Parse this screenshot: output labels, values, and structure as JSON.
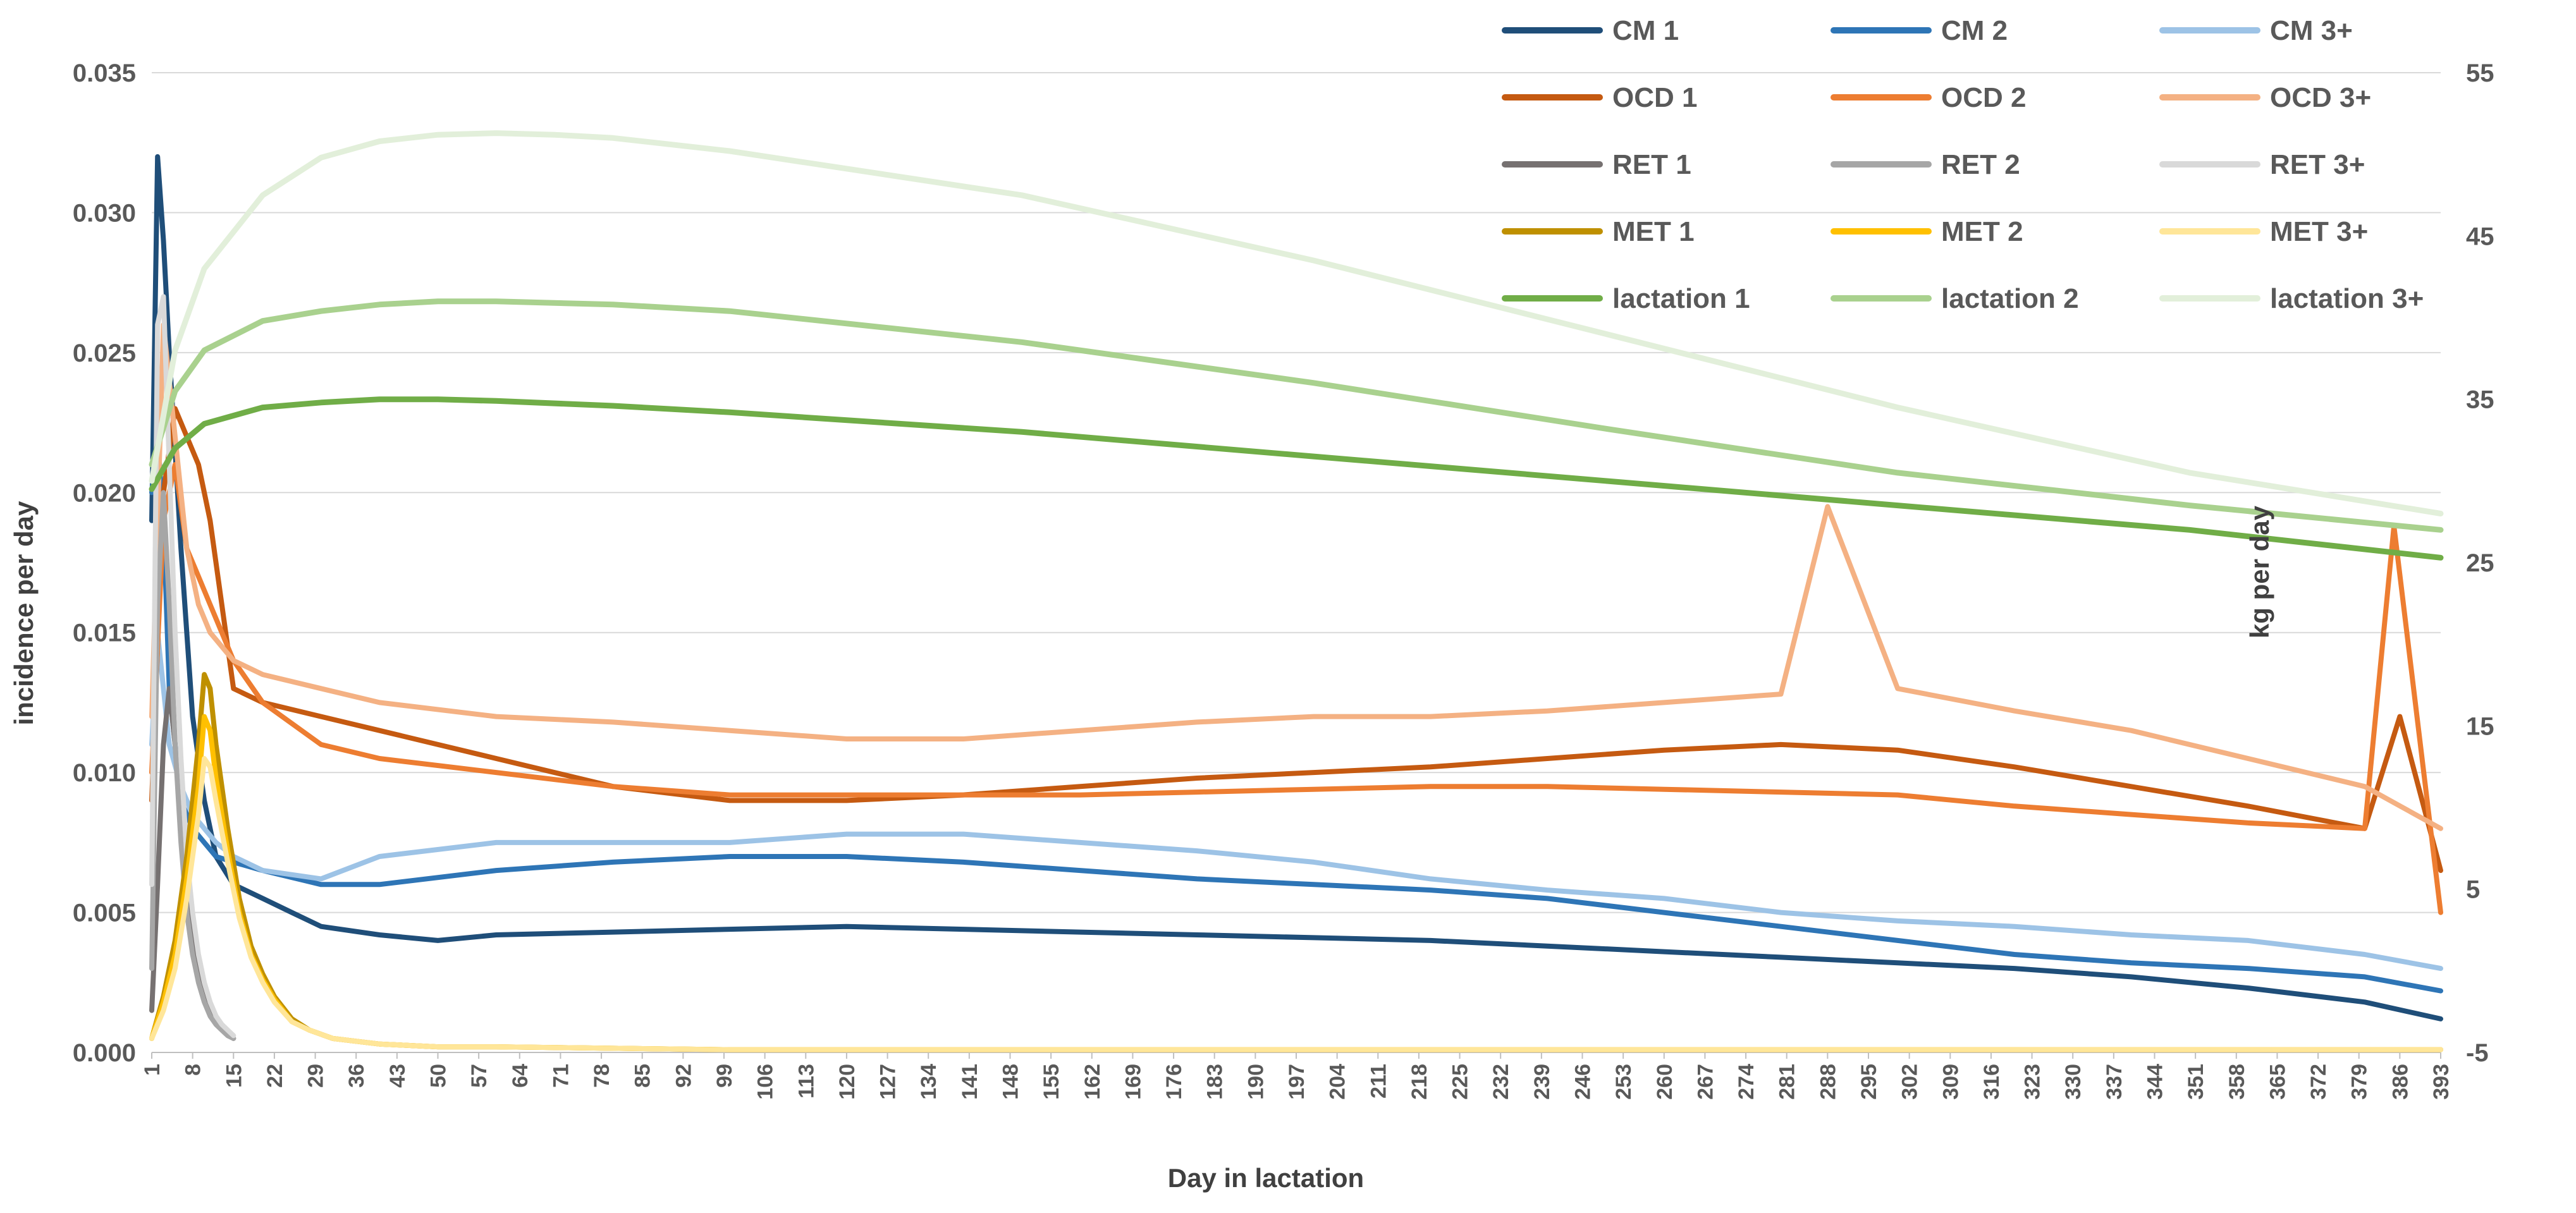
{
  "chart_data": {
    "type": "line",
    "xlabel": "Day in lactation",
    "ylabel": "incidence per day",
    "y2label": "kg per day",
    "x_range": [
      1,
      393
    ],
    "x_ticks": [
      1,
      8,
      15,
      22,
      29,
      36,
      43,
      50,
      57,
      64,
      71,
      78,
      85,
      92,
      99,
      106,
      113,
      120,
      127,
      134,
      141,
      148,
      155,
      162,
      169,
      176,
      183,
      190,
      197,
      204,
      211,
      218,
      225,
      232,
      239,
      246,
      253,
      260,
      267,
      274,
      281,
      288,
      295,
      302,
      309,
      316,
      323,
      330,
      337,
      344,
      351,
      358,
      365,
      372,
      379,
      386,
      393
    ],
    "ylim": [
      0,
      0.035
    ],
    "y_ticks": [
      "0.000",
      "0.005",
      "0.010",
      "0.015",
      "0.020",
      "0.025",
      "0.030",
      "0.035"
    ],
    "y2lim": [
      -5,
      55
    ],
    "y2_ticks": [
      "-5",
      "5",
      "15",
      "25",
      "35",
      "45",
      "55"
    ],
    "grid": "horizontal",
    "legend": "top-right",
    "series": [
      {
        "name": "CM 1",
        "axis": "left",
        "color": "#1f4e79",
        "x": [
          1,
          2,
          3,
          4,
          6,
          8,
          10,
          12,
          15,
          20,
          25,
          30,
          40,
          50,
          60,
          80,
          100,
          120,
          140,
          160,
          180,
          200,
          220,
          240,
          260,
          280,
          300,
          320,
          340,
          360,
          380,
          393
        ],
        "values": [
          0.019,
          0.032,
          0.029,
          0.025,
          0.018,
          0.012,
          0.009,
          0.007,
          0.006,
          0.0055,
          0.005,
          0.0045,
          0.0042,
          0.004,
          0.0042,
          0.0043,
          0.0044,
          0.0045,
          0.0044,
          0.0043,
          0.0042,
          0.0041,
          0.004,
          0.0038,
          0.0036,
          0.0034,
          0.0032,
          0.003,
          0.0027,
          0.0023,
          0.0018,
          0.0012
        ]
      },
      {
        "name": "CM 2",
        "axis": "left",
        "color": "#2e75b6",
        "x": [
          1,
          2,
          3,
          4,
          6,
          8,
          10,
          12,
          15,
          20,
          30,
          40,
          60,
          80,
          100,
          120,
          140,
          160,
          180,
          200,
          220,
          240,
          260,
          280,
          300,
          320,
          340,
          360,
          380,
          393
        ],
        "values": [
          0.02,
          0.022,
          0.019,
          0.013,
          0.009,
          0.008,
          0.0075,
          0.007,
          0.0068,
          0.0065,
          0.006,
          0.006,
          0.0065,
          0.0068,
          0.007,
          0.007,
          0.0068,
          0.0065,
          0.0062,
          0.006,
          0.0058,
          0.0055,
          0.005,
          0.0045,
          0.004,
          0.0035,
          0.0032,
          0.003,
          0.0027,
          0.0022
        ]
      },
      {
        "name": "CM 3+",
        "axis": "left",
        "color": "#9dc3e6",
        "x": [
          1,
          2,
          3,
          4,
          6,
          8,
          10,
          12,
          15,
          20,
          30,
          40,
          60,
          80,
          100,
          120,
          140,
          160,
          180,
          200,
          220,
          240,
          260,
          280,
          300,
          320,
          340,
          360,
          380,
          393
        ],
        "values": [
          0.011,
          0.015,
          0.013,
          0.011,
          0.0095,
          0.0085,
          0.008,
          0.0075,
          0.007,
          0.0065,
          0.0062,
          0.007,
          0.0075,
          0.0075,
          0.0075,
          0.0078,
          0.0078,
          0.0075,
          0.0072,
          0.0068,
          0.0062,
          0.0058,
          0.0055,
          0.005,
          0.0047,
          0.0045,
          0.0042,
          0.004,
          0.0035,
          0.003
        ]
      },
      {
        "name": "OCD 1",
        "axis": "left",
        "color": "#c55a11",
        "x": [
          1,
          3,
          5,
          7,
          9,
          11,
          13,
          15,
          20,
          30,
          40,
          60,
          80,
          100,
          120,
          140,
          160,
          180,
          200,
          220,
          240,
          260,
          280,
          300,
          320,
          340,
          360,
          380,
          386,
          393
        ],
        "values": [
          0.009,
          0.02,
          0.023,
          0.022,
          0.021,
          0.019,
          0.016,
          0.013,
          0.0125,
          0.012,
          0.0115,
          0.0105,
          0.0095,
          0.009,
          0.009,
          0.0092,
          0.0095,
          0.0098,
          0.01,
          0.0102,
          0.0105,
          0.0108,
          0.011,
          0.0108,
          0.0102,
          0.0095,
          0.0088,
          0.008,
          0.012,
          0.0065
        ]
      },
      {
        "name": "OCD 2",
        "axis": "left",
        "color": "#ed7d31",
        "x": [
          1,
          3,
          5,
          7,
          9,
          11,
          13,
          15,
          20,
          30,
          40,
          60,
          80,
          100,
          120,
          140,
          160,
          180,
          200,
          220,
          240,
          260,
          280,
          300,
          320,
          340,
          360,
          380,
          385,
          393
        ],
        "values": [
          0.01,
          0.019,
          0.021,
          0.018,
          0.017,
          0.016,
          0.015,
          0.014,
          0.0125,
          0.011,
          0.0105,
          0.01,
          0.0095,
          0.0092,
          0.0092,
          0.0092,
          0.0092,
          0.0093,
          0.0094,
          0.0095,
          0.0095,
          0.0094,
          0.0093,
          0.0092,
          0.0088,
          0.0085,
          0.0082,
          0.008,
          0.0188,
          0.005
        ]
      },
      {
        "name": "OCD 3+",
        "axis": "left",
        "color": "#f4b183",
        "x": [
          1,
          3,
          5,
          7,
          9,
          11,
          13,
          15,
          20,
          30,
          40,
          60,
          80,
          100,
          120,
          140,
          160,
          180,
          200,
          220,
          240,
          260,
          280,
          288,
          300,
          320,
          340,
          360,
          380,
          393
        ],
        "values": [
          0.012,
          0.026,
          0.022,
          0.018,
          0.016,
          0.015,
          0.0145,
          0.014,
          0.0135,
          0.013,
          0.0125,
          0.012,
          0.0118,
          0.0115,
          0.0112,
          0.0112,
          0.0115,
          0.0118,
          0.012,
          0.012,
          0.0122,
          0.0125,
          0.0128,
          0.0195,
          0.013,
          0.0122,
          0.0115,
          0.0105,
          0.0095,
          0.008
        ]
      },
      {
        "name": "RET 1",
        "axis": "left",
        "color": "#767171",
        "x": [
          1,
          2,
          3,
          4,
          5,
          6,
          7,
          8,
          9,
          10,
          11,
          12,
          13,
          14,
          15
        ],
        "values": [
          0.0015,
          0.006,
          0.011,
          0.013,
          0.011,
          0.008,
          0.0055,
          0.004,
          0.003,
          0.0022,
          0.0016,
          0.0012,
          0.0009,
          0.0007,
          0.0005
        ]
      },
      {
        "name": "RET 2",
        "axis": "left",
        "color": "#a6a6a6",
        "x": [
          1,
          2,
          3,
          4,
          5,
          6,
          7,
          8,
          9,
          10,
          11,
          12,
          13,
          14,
          15
        ],
        "values": [
          0.003,
          0.016,
          0.02,
          0.016,
          0.011,
          0.0075,
          0.005,
          0.0035,
          0.0025,
          0.0018,
          0.0013,
          0.001,
          0.0008,
          0.0006,
          0.0005
        ]
      },
      {
        "name": "RET 3+",
        "axis": "left",
        "color": "#d9d9d9",
        "x": [
          1,
          2,
          3,
          4,
          5,
          6,
          7,
          8,
          9,
          10,
          11,
          12,
          13,
          14,
          15
        ],
        "values": [
          0.006,
          0.026,
          0.027,
          0.021,
          0.015,
          0.0105,
          0.007,
          0.005,
          0.0035,
          0.0025,
          0.0018,
          0.0013,
          0.001,
          0.0008,
          0.0006
        ]
      },
      {
        "name": "MET 1",
        "axis": "left",
        "color": "#bf9000",
        "x": [
          1,
          3,
          5,
          7,
          9,
          10,
          11,
          12,
          14,
          16,
          18,
          20,
          22,
          25,
          28,
          32,
          36,
          40,
          50,
          60,
          80,
          100,
          150,
          200,
          250,
          300,
          350,
          393
        ],
        "values": [
          0.0005,
          0.002,
          0.004,
          0.007,
          0.011,
          0.0135,
          0.013,
          0.011,
          0.008,
          0.0055,
          0.0038,
          0.0028,
          0.002,
          0.0012,
          0.0008,
          0.0005,
          0.0004,
          0.0003,
          0.0002,
          0.0002,
          0.00015,
          0.0001,
          0.0001,
          0.0001,
          0.0001,
          0.0001,
          0.0001,
          0.0001
        ]
      },
      {
        "name": "MET 2",
        "axis": "left",
        "color": "#ffc000",
        "x": [
          1,
          3,
          5,
          7,
          9,
          10,
          11,
          12,
          14,
          16,
          18,
          20,
          22,
          25,
          28,
          32,
          36,
          40,
          50,
          60,
          80,
          100,
          150,
          200,
          250,
          300,
          350,
          393
        ],
        "values": [
          0.0005,
          0.0018,
          0.0035,
          0.0062,
          0.0095,
          0.012,
          0.0115,
          0.0098,
          0.0072,
          0.005,
          0.0035,
          0.0026,
          0.0019,
          0.0011,
          0.0008,
          0.0005,
          0.0004,
          0.0003,
          0.0002,
          0.0002,
          0.00015,
          0.0001,
          0.0001,
          0.0001,
          0.0001,
          0.0001,
          0.0001,
          0.0001
        ]
      },
      {
        "name": "MET 3+",
        "axis": "left",
        "color": "#ffe699",
        "x": [
          1,
          3,
          5,
          7,
          9,
          10,
          11,
          12,
          14,
          16,
          18,
          20,
          22,
          25,
          28,
          32,
          36,
          40,
          50,
          60,
          80,
          100,
          150,
          200,
          250,
          300,
          350,
          393
        ],
        "values": [
          0.0005,
          0.0015,
          0.003,
          0.0055,
          0.0085,
          0.0105,
          0.0102,
          0.009,
          0.0068,
          0.0048,
          0.0034,
          0.0025,
          0.0018,
          0.0011,
          0.0008,
          0.0005,
          0.0004,
          0.0003,
          0.0002,
          0.0002,
          0.00015,
          0.0001,
          0.0001,
          0.0001,
          0.0001,
          0.0001,
          0.0001,
          0.0001
        ]
      },
      {
        "name": "lactation 1",
        "axis": "right",
        "color": "#70ad47",
        "x": [
          1,
          5,
          10,
          20,
          30,
          40,
          50,
          60,
          80,
          100,
          150,
          200,
          250,
          300,
          350,
          393
        ],
        "values": [
          29.5,
          32,
          33.5,
          34.5,
          34.8,
          35,
          35,
          34.9,
          34.6,
          34.2,
          33,
          31.5,
          30,
          28.5,
          27,
          25.3
        ]
      },
      {
        "name": "lactation 2",
        "axis": "right",
        "color": "#a9d18e",
        "x": [
          1,
          5,
          10,
          20,
          30,
          40,
          50,
          60,
          80,
          100,
          150,
          200,
          250,
          300,
          350,
          393
        ],
        "values": [
          31,
          35.5,
          38,
          39.8,
          40.4,
          40.8,
          41,
          41,
          40.8,
          40.4,
          38.5,
          36,
          33.2,
          30.5,
          28.5,
          27
        ]
      },
      {
        "name": "lactation 3+",
        "axis": "right",
        "color": "#e2efda",
        "x": [
          1,
          5,
          10,
          20,
          30,
          40,
          50,
          60,
          70,
          80,
          100,
          150,
          200,
          250,
          300,
          350,
          393
        ],
        "values": [
          30,
          38,
          43,
          47.5,
          49.8,
          50.8,
          51.2,
          51.3,
          51.2,
          51,
          50.2,
          47.5,
          43.5,
          39,
          34.5,
          30.5,
          28
        ]
      }
    ]
  }
}
